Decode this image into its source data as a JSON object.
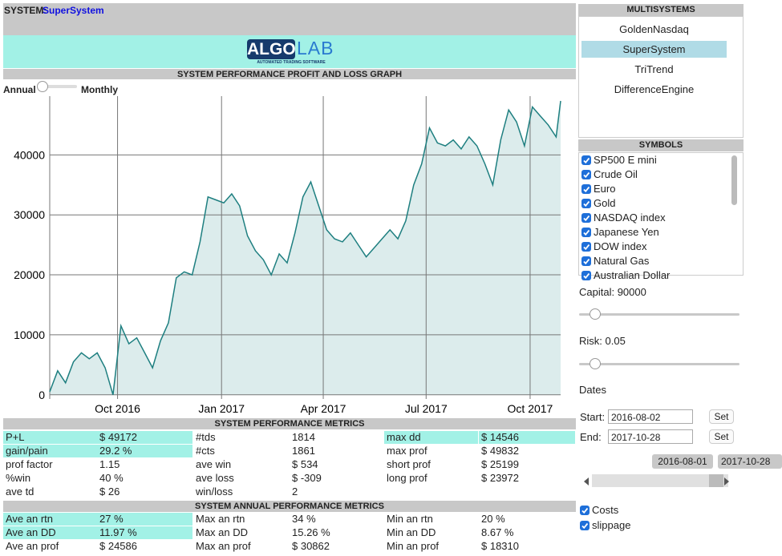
{
  "header": {
    "system_label": "SYSTEM:",
    "system_name": "SuperSystem",
    "logo_left": "ALGO",
    "logo_right": "LAB",
    "tagline": "AUTOMATED TRADING SOFTWARE",
    "graph_title": "SYSTEM PERFORMANCE PROFIT AND LOSS GRAPH"
  },
  "toggle": {
    "left": "Annual",
    "right": "Monthly"
  },
  "chart_data": {
    "type": "line",
    "color": "#1e7f80",
    "fill": "#dcecec",
    "grid": true,
    "x": [
      "2016-08-02",
      "2016-08-09",
      "2016-08-16",
      "2016-08-23",
      "2016-08-30",
      "2016-09-06",
      "2016-09-13",
      "2016-09-20",
      "2016-09-27",
      "2016-10-04",
      "2016-10-11",
      "2016-10-18",
      "2016-10-25",
      "2016-11-01",
      "2016-11-08",
      "2016-11-15",
      "2016-11-22",
      "2016-11-29",
      "2016-12-06",
      "2016-12-13",
      "2016-12-20",
      "2016-12-27",
      "2017-01-03",
      "2017-01-10",
      "2017-01-17",
      "2017-01-24",
      "2017-01-31",
      "2017-02-07",
      "2017-02-14",
      "2017-02-21",
      "2017-02-28",
      "2017-03-07",
      "2017-03-14",
      "2017-03-21",
      "2017-03-28",
      "2017-04-04",
      "2017-04-11",
      "2017-04-18",
      "2017-04-25",
      "2017-05-02",
      "2017-05-09",
      "2017-05-16",
      "2017-05-23",
      "2017-05-30",
      "2017-06-06",
      "2017-06-13",
      "2017-06-20",
      "2017-06-27",
      "2017-07-04",
      "2017-07-11",
      "2017-07-18",
      "2017-07-25",
      "2017-08-01",
      "2017-08-08",
      "2017-08-15",
      "2017-08-22",
      "2017-08-29",
      "2017-09-05",
      "2017-09-12",
      "2017-09-19",
      "2017-09-26",
      "2017-10-03",
      "2017-10-10",
      "2017-10-17",
      "2017-10-24",
      "2017-10-28"
    ],
    "values": [
      500,
      4000,
      2000,
      5500,
      7000,
      6000,
      7000,
      4500,
      0,
      11500,
      8500,
      9500,
      7000,
      4500,
      9000,
      12000,
      19500,
      20500,
      20000,
      25500,
      33000,
      32500,
      32000,
      33500,
      31500,
      26500,
      24000,
      22500,
      20000,
      23500,
      22000,
      27000,
      33000,
      35500,
      31500,
      27500,
      26000,
      25500,
      27000,
      25000,
      23000,
      24500,
      26000,
      27500,
      26000,
      29000,
      35000,
      38500,
      44500,
      42000,
      41500,
      42500,
      41000,
      43000,
      41500,
      38500,
      35000,
      42500,
      47500,
      45500,
      41500,
      48000,
      46500,
      45000,
      43000,
      49000
    ],
    "xlim": [
      "2016-08-02",
      "2017-10-28"
    ],
    "xticks": [
      {
        "value": "2016-10-01",
        "label": "Oct 2016"
      },
      {
        "value": "2017-01-01",
        "label": "Jan 2017"
      },
      {
        "value": "2017-04-01",
        "label": "Apr 2017"
      },
      {
        "value": "2017-07-01",
        "label": "Jul 2017"
      },
      {
        "value": "2017-10-01",
        "label": "Oct 2017"
      }
    ],
    "ylim": [
      -700,
      49800
    ],
    "yticks": [
      0,
      10000,
      20000,
      30000,
      40000
    ]
  },
  "metrics": {
    "title": "SYSTEM PERFORMANCE METRICS",
    "rows": [
      [
        "P+L",
        "$ 49172",
        "#tds",
        "1814",
        "max dd",
        "$ 14546"
      ],
      [
        "gain/pain",
        "29.2 %",
        "#cts",
        "1861",
        "max prof",
        "$ 49832"
      ],
      [
        "prof factor",
        "1.15",
        "ave win",
        "$ 534",
        "short prof",
        "$ 25199"
      ],
      [
        "%win",
        "40 %",
        "ave loss",
        "$ -309",
        "long prof",
        "$ 23972"
      ],
      [
        "ave td",
        "$ 26",
        "win/loss",
        "2"
      ]
    ]
  },
  "annual_metrics": {
    "title": "SYSTEM ANNUAL PERFORMANCE METRICS",
    "rows": [
      [
        "Ave an rtn",
        "27 %",
        "Max an rtn",
        "34 %",
        "Min an rtn",
        "20 %"
      ],
      [
        "Ave an DD",
        "11.97 %",
        "Max an DD",
        "15.26 %",
        "Min an DD",
        "8.67 %"
      ],
      [
        "Ave an prof",
        "$ 24586",
        "Max an prof",
        "$ 30862",
        "Min an prof",
        "$ 18310"
      ]
    ]
  },
  "sidebar": {
    "multisystems": {
      "title": "MULTISYSTEMS",
      "items": [
        "GoldenNasdaq",
        "SuperSystem",
        "TriTrend",
        "DifferenceEngine"
      ],
      "selected": 1
    },
    "symbols": {
      "title": "SYMBOLS",
      "items": [
        "SP500 E mini",
        "Crude Oil",
        "Euro",
        "Gold",
        "NASDAQ index",
        "Japanese Yen",
        "DOW index",
        "Natural Gas",
        "Australian Dollar"
      ]
    },
    "capital": "Capital: 90000",
    "risk": "Risk: 0.05",
    "dates": "Dates",
    "start_label": "Start:",
    "start_value": "2016-08-02",
    "end_label": "End:",
    "end_value": "2017-10-28",
    "set": "Set",
    "range_start": "2016-08-01",
    "range_end": "2017-10-28",
    "options": [
      "Costs",
      "slippage"
    ]
  }
}
